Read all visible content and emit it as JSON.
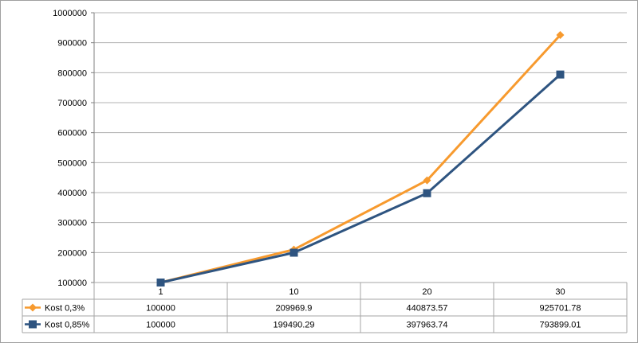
{
  "chart_data": {
    "type": "line",
    "categories": [
      "1",
      "10",
      "20",
      "30"
    ],
    "series": [
      {
        "name": "Kost 0,3%",
        "color": "#f79a2e",
        "marker": "diamond",
        "values": [
          100000,
          209969.9,
          440873.57,
          925701.78
        ],
        "labels": [
          "100000",
          "209969.9",
          "440873.57",
          "925701.78"
        ]
      },
      {
        "name": "Kost 0,85%",
        "color": "#2e5480",
        "marker": "square",
        "values": [
          100000,
          199490.29,
          397963.74,
          793899.01
        ],
        "labels": [
          "100000",
          "199490.29",
          "397963.74",
          "793899.01"
        ]
      }
    ],
    "y_ticks": [
      "100000",
      "200000",
      "300000",
      "400000",
      "500000",
      "600000",
      "700000",
      "800000",
      "900000",
      "1000000"
    ],
    "ylim": [
      100000,
      1000000
    ],
    "grid": true,
    "legend": "data-table-left"
  }
}
